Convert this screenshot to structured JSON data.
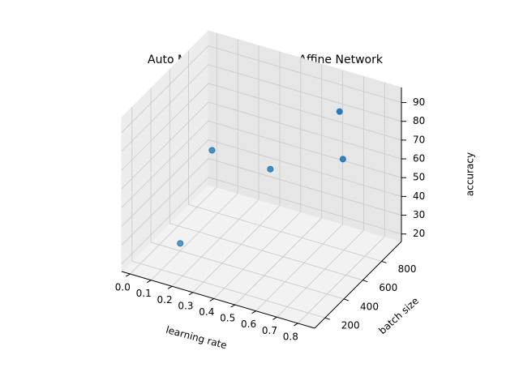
{
  "chart_data": {
    "type": "scatter3d",
    "title": "Auto Manual Results From Affine Network",
    "xlabel": "learning rate",
    "ylabel": "batch size",
    "zlabel": "accuracy",
    "x": [
      0.1,
      0.22,
      0.435,
      0.7,
      0.72
    ],
    "y": [
      400,
      470,
      610,
      790,
      710
    ],
    "z": [
      20,
      70,
      60,
      65,
      95
    ],
    "color": "#1f77b4",
    "xlim": [
      -0.04,
      0.88
    ],
    "ylim": [
      90,
      1010
    ],
    "zlim": [
      16,
      98
    ],
    "xticks": [
      {
        "value": 0,
        "label": "0.0"
      },
      0.1,
      0.2,
      0.3,
      0.4,
      0.5,
      0.6,
      0.7,
      0.8
    ],
    "yticks": [
      200,
      400,
      600,
      800
    ],
    "zticks": [
      20,
      30,
      40,
      50,
      60,
      70,
      80,
      90
    ],
    "grid": true
  }
}
